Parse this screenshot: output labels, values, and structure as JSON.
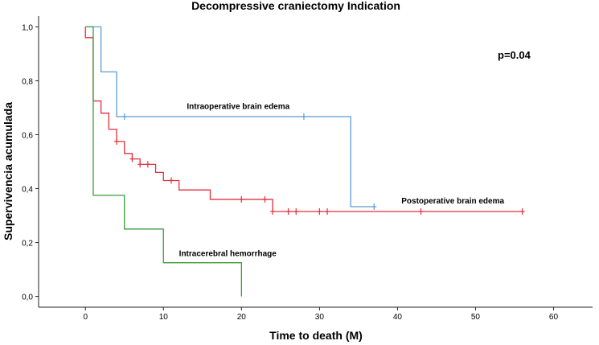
{
  "chart_data": {
    "type": "line",
    "subtype": "kaplan-meier step",
    "title": "Decompressive craniectomy Indication",
    "xlabel": "Time to death (M)",
    "ylabel": "Supervivencia acumulada",
    "xlim": [
      -6,
      65
    ],
    "ylim": [
      -0.04,
      1.04
    ],
    "x_ticks": [
      0,
      10,
      20,
      30,
      40,
      50,
      60
    ],
    "x_tick_labels": [
      "0",
      "10",
      "20",
      "30",
      "40",
      "50",
      "60"
    ],
    "y_ticks": [
      0.0,
      0.2,
      0.4,
      0.6,
      0.8,
      1.0
    ],
    "y_tick_labels": [
      "0,0",
      "0,2",
      "0,4",
      "0,6",
      "0,8",
      "1,0"
    ],
    "annotation": "p=0.04",
    "series": [
      {
        "name": "Intraoperative brain edema",
        "color": "#5b9bd5",
        "label_at": [
          13,
          0.695
        ],
        "steps": [
          [
            0,
            1.0
          ],
          [
            2,
            0.833
          ],
          [
            4,
            0.667
          ],
          [
            34,
            0.333
          ],
          [
            37,
            0.333
          ]
        ],
        "censored": [
          [
            5,
            0.667
          ],
          [
            28,
            0.667
          ],
          [
            37,
            0.333
          ]
        ]
      },
      {
        "name": "Postoperative brain edema",
        "color": "#e0303c",
        "label_at": [
          40.5,
          0.345
        ],
        "steps": [
          [
            0,
            1.0
          ],
          [
            0,
            0.96
          ],
          [
            1,
            0.725
          ],
          [
            2,
            0.68
          ],
          [
            3,
            0.62
          ],
          [
            4,
            0.575
          ],
          [
            5,
            0.53
          ],
          [
            6,
            0.51
          ],
          [
            7,
            0.49
          ],
          [
            9,
            0.46
          ],
          [
            10,
            0.43
          ],
          [
            12,
            0.395
          ],
          [
            16,
            0.36
          ],
          [
            24,
            0.315
          ],
          [
            56,
            0.315
          ]
        ],
        "censored": [
          [
            4,
            0.575
          ],
          [
            6,
            0.51
          ],
          [
            7,
            0.49
          ],
          [
            8,
            0.49
          ],
          [
            11,
            0.43
          ],
          [
            20,
            0.36
          ],
          [
            23,
            0.36
          ],
          [
            24,
            0.315
          ],
          [
            26,
            0.315
          ],
          [
            27,
            0.315
          ],
          [
            30,
            0.315
          ],
          [
            31,
            0.315
          ],
          [
            43,
            0.315
          ],
          [
            56,
            0.315
          ]
        ]
      },
      {
        "name": "Intracerebral hemorrhage",
        "color": "#3a9a3a",
        "label_at": [
          12,
          0.15
        ],
        "steps": [
          [
            0,
            1.0
          ],
          [
            1,
            0.375
          ],
          [
            5,
            0.25
          ],
          [
            10,
            0.125
          ],
          [
            20,
            0.0
          ]
        ],
        "censored": []
      }
    ]
  }
}
